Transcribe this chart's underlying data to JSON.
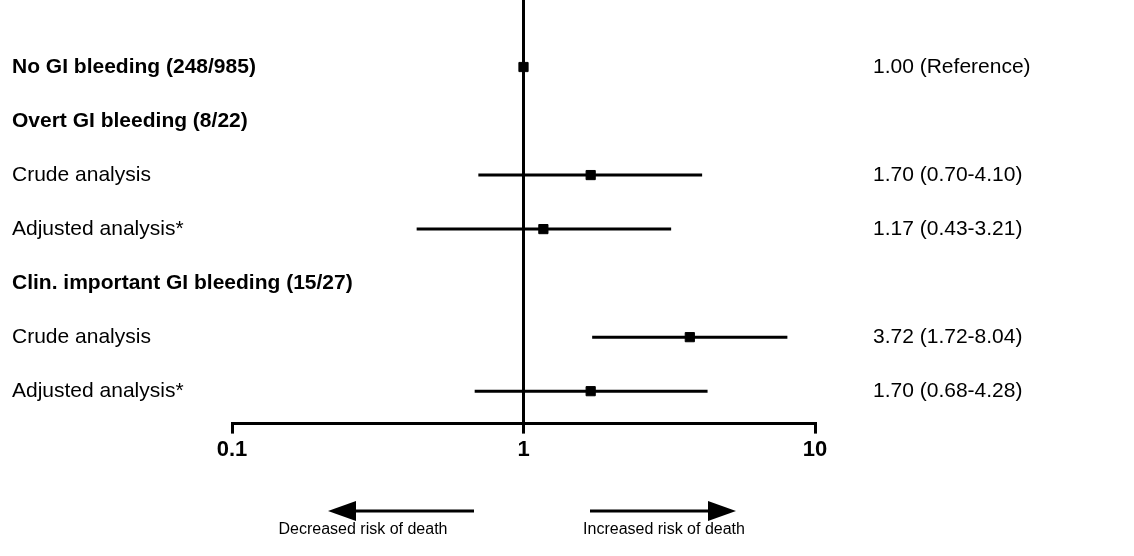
{
  "chart_data": {
    "type": "scatter",
    "orientation": "horizontal",
    "log": "x",
    "marker": "square",
    "color": "#000000",
    "legend": false,
    "categories": [
      "No GI bleeding (248/985)",
      "Overt GI bleeding (8/22)",
      "Crude analysis",
      "Adjusted analysis*",
      "Clin. important GI bleeding (15/27)",
      "Crude analysis",
      "Adjusted analysis*"
    ],
    "values": [
      1.0,
      null,
      1.7,
      1.17,
      null,
      3.72,
      1.7
    ],
    "errors": [
      null,
      null,
      [
        0.7,
        4.1
      ],
      [
        0.43,
        3.21
      ],
      null,
      [
        1.72,
        8.04
      ],
      [
        0.68,
        4.28
      ]
    ],
    "value_labels": [
      "1.00 (Reference)",
      null,
      "1.70 (0.70-4.10)",
      "1.17 (0.43-3.21)",
      null,
      "3.72 (1.72-8.04)",
      "1.70 (0.68-4.28)"
    ],
    "xlim": [
      0.1,
      10
    ],
    "xticks": [
      0.1,
      1,
      10
    ],
    "ref_lines": [
      {
        "axis": "x",
        "value": 1
      }
    ],
    "annotations": [
      "Decreased risk of death",
      "Increased risk of death"
    ]
  }
}
